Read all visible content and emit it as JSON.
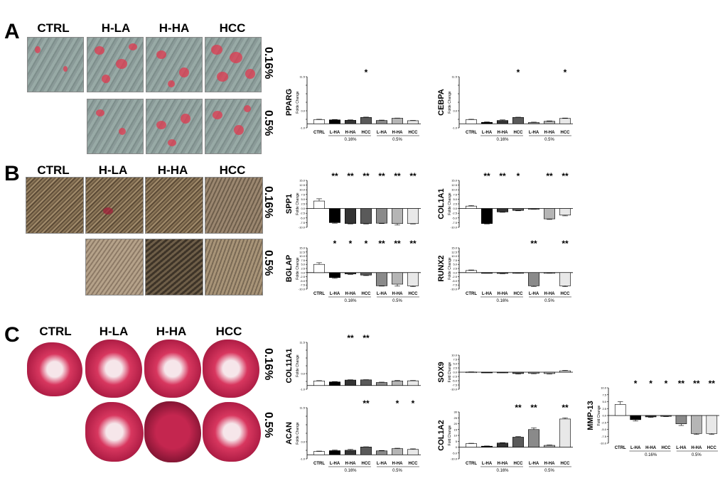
{
  "panels": [
    {
      "letter": "A",
      "columns": [
        "CTRL",
        "H-LA",
        "H-HA",
        "HCC"
      ],
      "rows": [
        "0.16%",
        "0.5%"
      ]
    },
    {
      "letter": "B",
      "columns": [
        "CTRL",
        "H-LA",
        "H-HA",
        "HCC"
      ],
      "rows": [
        "0.16%",
        "0.5%"
      ]
    },
    {
      "letter": "C",
      "columns": [
        "CTRL",
        "H-LA",
        "H-HA",
        "HCC"
      ],
      "rows": [
        "0.16%",
        "0.5%"
      ]
    }
  ],
  "axis_common": {
    "ylabel": "Folde Change",
    "ylabel_alt": "Fold Change",
    "x_categories": [
      "CTRL",
      "L-HA",
      "H-HA",
      "HCC",
      "L-HA",
      "H-HA",
      "HCC"
    ],
    "group_labels": [
      "0.16%",
      "0.5%"
    ]
  },
  "chart_data": [
    {
      "type": "bar",
      "gene": "PPARG",
      "ylim": [
        -1,
        11.5
      ],
      "ticks": [
        "11.5",
        "",
        "",
        "",
        "0.0",
        "",
        "-1.0"
      ],
      "values": [
        1.0,
        0.95,
        0.85,
        1.55,
        0.8,
        1.35,
        0.75
      ],
      "errors": [
        0.1,
        0.08,
        0.1,
        0.08,
        0.1,
        0.05,
        0.08
      ],
      "sig": [
        "",
        "",
        "",
        "*",
        "",
        "",
        ""
      ],
      "colors": [
        "#ffffff",
        "#000000",
        "#333333",
        "#5a5a5a",
        "#8a8a8a",
        "#b5b5b5",
        "#e8e8e8"
      ]
    },
    {
      "type": "bar",
      "gene": "CEBPA",
      "ylim": [
        -1,
        11.5
      ],
      "ticks": [
        "11.5",
        "",
        "",
        "",
        "0.0",
        "",
        "-1.0"
      ],
      "values": [
        1.0,
        0.35,
        0.8,
        1.55,
        0.3,
        0.6,
        1.3
      ],
      "errors": [
        0.1,
        0.1,
        0.15,
        0.06,
        0.1,
        0.1,
        0.1
      ],
      "sig": [
        "",
        "",
        "",
        "*",
        "",
        "",
        "*"
      ],
      "colors": [
        "#ffffff",
        "#000000",
        "#333333",
        "#5a5a5a",
        "#8a8a8a",
        "#b5b5b5",
        "#e8e8e8"
      ]
    },
    {
      "type": "bar",
      "gene": "SPP1",
      "ylim": [
        -10,
        15
      ],
      "ticks": [
        "15.0",
        "12.5",
        "10.0",
        "7.5",
        "5.0",
        "2.5",
        "0.0",
        "-2.5",
        "-5.0",
        "-7.5",
        "-10.0"
      ],
      "values": [
        4.0,
        -7.5,
        -8.0,
        -8.0,
        -7.8,
        -8.0,
        -8.0
      ],
      "errors": [
        1.2,
        0.3,
        0.2,
        0.2,
        0.2,
        0.8,
        0.2
      ],
      "sig": [
        "",
        "**",
        "**",
        "**",
        "**",
        "**",
        "**"
      ],
      "colors": [
        "#ffffff",
        "#000000",
        "#333333",
        "#5a5a5a",
        "#8a8a8a",
        "#b5b5b5",
        "#e8e8e8"
      ]
    },
    {
      "type": "bar",
      "gene": "COL1A1",
      "ylim": [
        -10,
        15
      ],
      "ticks": [
        "15.0",
        "12.5",
        "10.0",
        "7.5",
        "5.0",
        "2.5",
        "0.0",
        "-2.5",
        "-5.0",
        "-7.5",
        "-10.0"
      ],
      "values": [
        1.3,
        -8.0,
        -1.8,
        -1.0,
        -0.2,
        -5.5,
        -3.5
      ],
      "errors": [
        0.3,
        0.2,
        0.2,
        0.2,
        0.1,
        0.3,
        0.4
      ],
      "sig": [
        "",
        "**",
        "**",
        "*",
        "",
        "**",
        "**"
      ],
      "colors": [
        "#ffffff",
        "#000000",
        "#333333",
        "#5a5a5a",
        "#8a8a8a",
        "#b5b5b5",
        "#e8e8e8"
      ]
    },
    {
      "type": "bar",
      "gene": "BGLAP",
      "ylim": [
        -10,
        15
      ],
      "ticks": [
        "15.0",
        "12.5",
        "10.0",
        "7.5",
        "5.0",
        "2.5",
        "0.0",
        "-2.5",
        "-5.0",
        "-7.5",
        "-10.0"
      ],
      "values": [
        5.0,
        -3.0,
        -0.8,
        -1.5,
        -8.0,
        -7.0,
        -8.0
      ],
      "errors": [
        1.0,
        0.5,
        0.3,
        0.3,
        0.2,
        1.2,
        0.5
      ],
      "sig": [
        "",
        "*",
        "*",
        "*",
        "**",
        "**",
        "**"
      ],
      "colors": [
        "#ffffff",
        "#000000",
        "#333333",
        "#5a5a5a",
        "#8a8a8a",
        "#b5b5b5",
        "#e8e8e8"
      ]
    },
    {
      "type": "bar",
      "gene": "RUNX2",
      "ylim": [
        -10,
        15
      ],
      "ticks": [
        "15.0",
        "12.5",
        "10.0",
        "7.5",
        "5.0",
        "2.5",
        "0.0",
        "-2.5",
        "-5.0",
        "-7.5",
        "-10.0"
      ],
      "values": [
        1.3,
        -0.3,
        -0.5,
        -0.2,
        -8.0,
        -0.2,
        -8.0
      ],
      "errors": [
        0.3,
        0.1,
        0.2,
        0.1,
        0.4,
        0.1,
        0.5
      ],
      "sig": [
        "",
        "",
        "",
        "",
        "**",
        "",
        "**"
      ],
      "colors": [
        "#ffffff",
        "#000000",
        "#333333",
        "#5a5a5a",
        "#8a8a8a",
        "#b5b5b5",
        "#e8e8e8"
      ]
    },
    {
      "type": "bar",
      "gene": "COL11A1",
      "ylim": [
        -1,
        11.5
      ],
      "ticks": [
        "11.5",
        "",
        "",
        "",
        "0.0",
        "",
        "-1.0"
      ],
      "values": [
        1.2,
        0.95,
        1.45,
        1.5,
        0.8,
        1.2,
        1.25
      ],
      "errors": [
        0.1,
        0.1,
        0.08,
        0.05,
        0.1,
        0.15,
        0.1
      ],
      "sig": [
        "",
        "",
        "**",
        "**",
        "",
        "",
        ""
      ],
      "colors": [
        "#ffffff",
        "#000000",
        "#333333",
        "#5a5a5a",
        "#8a8a8a",
        "#b5b5b5",
        "#e8e8e8"
      ]
    },
    {
      "type": "bar",
      "gene": "SOX9",
      "ylim": [
        -10,
        10
      ],
      "ticks": [
        "10.0",
        "7.5",
        "5.0",
        "2.5",
        "0.0",
        "-2.5",
        "-5.0",
        "-7.5",
        "-10.0"
      ],
      "values": [
        0.1,
        -0.2,
        -0.2,
        -0.8,
        -0.6,
        -0.8,
        0.8
      ],
      "errors": [
        0.1,
        0.1,
        0.1,
        0.3,
        0.3,
        0.3,
        0.3
      ],
      "sig": [
        "",
        "",
        "",
        "",
        "",
        "",
        ""
      ],
      "colors": [
        "#ffffff",
        "#000000",
        "#333333",
        "#5a5a5a",
        "#8a8a8a",
        "#b5b5b5",
        "#e8e8e8"
      ]
    },
    {
      "type": "bar",
      "gene": "MMP-13",
      "ylim": [
        -10,
        10
      ],
      "ticks": [
        "10.0",
        "7.5",
        "5.0",
        "2.5",
        "0.0",
        "-2.5",
        "-5.0",
        "-7.5",
        "-10.0"
      ],
      "values": [
        4.0,
        -1.5,
        -0.5,
        -0.3,
        -3.0,
        -6.5,
        -6.5
      ],
      "errors": [
        1.0,
        0.5,
        0.2,
        0.1,
        0.6,
        0.3,
        0.3
      ],
      "sig": [
        "",
        "*",
        "*",
        "*",
        "**",
        "**",
        "**"
      ],
      "colors": [
        "#ffffff",
        "#000000",
        "#333333",
        "#5a5a5a",
        "#8a8a8a",
        "#b5b5b5",
        "#e8e8e8"
      ]
    },
    {
      "type": "bar",
      "gene": "ACAN",
      "ylim": [
        -1,
        11.5
      ],
      "ticks": [
        "11.5",
        "",
        "",
        "",
        "0.0",
        "",
        "-1.0"
      ],
      "values": [
        0.8,
        1.0,
        1.1,
        1.9,
        0.95,
        1.5,
        1.3
      ],
      "errors": [
        0.1,
        0.15,
        0.2,
        0.05,
        0.1,
        0.1,
        0.15
      ],
      "sig": [
        "",
        "",
        "",
        "**",
        "",
        "*",
        "*"
      ],
      "colors": [
        "#ffffff",
        "#000000",
        "#333333",
        "#5a5a5a",
        "#8a8a8a",
        "#b5b5b5",
        "#e8e8e8"
      ]
    },
    {
      "type": "bar",
      "gene": "COL1A2",
      "ylim": [
        -10,
        30
      ],
      "ticks": [
        "30",
        "25",
        "20",
        "15",
        "10",
        "5",
        "0",
        "-5.0",
        "-10.0"
      ],
      "values": [
        3.0,
        0.8,
        3.5,
        8.5,
        15.0,
        1.5,
        24.0
      ],
      "errors": [
        0.3,
        0.2,
        0.3,
        0.5,
        1.5,
        0.4,
        1.0
      ],
      "sig": [
        "",
        "",
        "",
        "**",
        "**",
        "",
        "**"
      ],
      "colors": [
        "#ffffff",
        "#000000",
        "#333333",
        "#5a5a5a",
        "#8a8a8a",
        "#b5b5b5",
        "#e8e8e8"
      ]
    }
  ]
}
